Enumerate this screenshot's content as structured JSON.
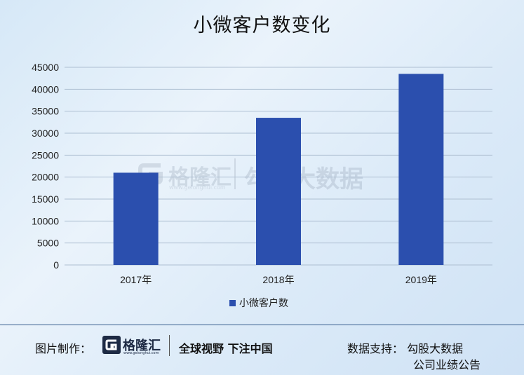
{
  "chart_data": {
    "type": "bar",
    "title": "小微客户数变化",
    "categories": [
      "2017年",
      "2018年",
      "2019年"
    ],
    "series": [
      {
        "name": "小微客户数",
        "values": [
          21000,
          33500,
          43500
        ],
        "color": "#2b4fae"
      }
    ],
    "ylim": [
      0,
      45000
    ],
    "yticks": [
      0,
      5000,
      10000,
      15000,
      20000,
      25000,
      30000,
      35000,
      40000,
      45000
    ],
    "grid": true,
    "legend": "bottom"
  },
  "watermark": {
    "logo": "格隆汇",
    "url": "www.gelonghui.com",
    "text": "勾股大数据"
  },
  "footer": {
    "credit_label": "图片制作：",
    "logo_name": "格隆汇",
    "logo_url": "www.gelonghui.com",
    "slogan": "全球视野 下注中国",
    "source_label": "数据支持：  勾股大数据",
    "source_line2": "公司业绩公告"
  },
  "icons": {
    "logo": "gelonghui-g-icon"
  }
}
